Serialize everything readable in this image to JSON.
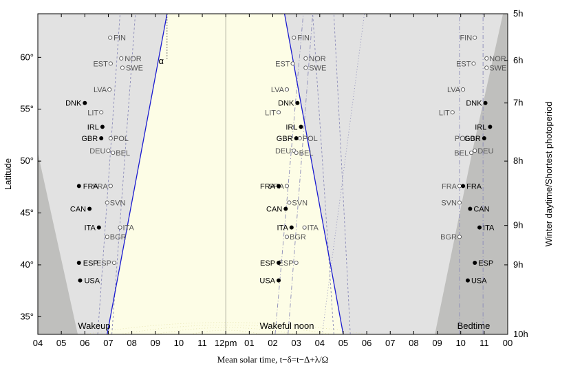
{
  "chart_data": {
    "type": "scatter",
    "xlabel": "Mean solar time, t−δ=t−Δ+λ/Ω",
    "ylabel": "Latitude",
    "y2label": "Winter daytime/Shortest photoperiod",
    "xlim": [
      4,
      24
    ],
    "ylim": [
      33.3,
      64.2
    ],
    "x_ticks": [
      {
        "v": 4,
        "label": "04"
      },
      {
        "v": 5,
        "label": "05"
      },
      {
        "v": 6,
        "label": "06"
      },
      {
        "v": 7,
        "label": "07"
      },
      {
        "v": 8,
        "label": "08"
      },
      {
        "v": 9,
        "label": "09"
      },
      {
        "v": 10,
        "label": "10"
      },
      {
        "v": 11,
        "label": "11"
      },
      {
        "v": 12,
        "label": "12pm"
      },
      {
        "v": 13,
        "label": "01"
      },
      {
        "v": 14,
        "label": "02"
      },
      {
        "v": 15,
        "label": "03"
      },
      {
        "v": 16,
        "label": "04"
      },
      {
        "v": 17,
        "label": "05"
      },
      {
        "v": 18,
        "label": "06"
      },
      {
        "v": 19,
        "label": "07"
      },
      {
        "v": 20,
        "label": "08"
      },
      {
        "v": 21,
        "label": "09"
      },
      {
        "v": 22,
        "label": "10"
      },
      {
        "v": 23,
        "label": "11"
      },
      {
        "v": 24,
        "label": "00"
      }
    ],
    "y_ticks": [
      {
        "v": 35,
        "label": "35°"
      },
      {
        "v": 40,
        "label": "40°"
      },
      {
        "v": 45,
        "label": "45°"
      },
      {
        "v": 50,
        "label": "50°"
      },
      {
        "v": 55,
        "label": "55°"
      },
      {
        "v": 60,
        "label": "60°"
      }
    ],
    "y2_ticks": [
      {
        "lat": 64.2,
        "label": "5h"
      },
      {
        "lat": 59.7,
        "label": "6h"
      },
      {
        "lat": 55.6,
        "label": "7h"
      },
      {
        "lat": 50.0,
        "label": "8h"
      },
      {
        "lat": 43.8,
        "label": "9h"
      },
      {
        "lat": 40.0,
        "label": "9h"
      },
      {
        "lat": 33.3,
        "label": "10h"
      }
    ],
    "section_labels": [
      {
        "text": "Wakeup",
        "x": 6.4
      },
      {
        "text": "Wakeful noon",
        "x": 14.6
      },
      {
        "text": "Bedtime",
        "x": 22.55
      }
    ],
    "alpha_label": "α",
    "colors": {
      "daylight": "#fdfde6",
      "twilight": "#e2e2e2",
      "night": "#bfbfbd",
      "terminator": "#1a1ad0",
      "dashed": "#8a8ab8",
      "open_marker": "#555555",
      "filled_marker": "#000000"
    },
    "sunrise_line": {
      "from": [
        6.95,
        33.3
      ],
      "to": [
        9.5,
        64.2
      ]
    },
    "sunset_line": {
      "from": [
        17.0,
        33.3
      ],
      "to": [
        14.5,
        64.2
      ]
    },
    "night_left": [
      [
        4,
        33.3
      ],
      [
        4,
        50.8
      ],
      [
        5.7,
        33.3
      ]
    ],
    "night_right": [
      [
        24,
        64.2
      ],
      [
        24,
        33.3
      ],
      [
        20.9,
        33.3
      ],
      [
        22.5,
        51.0
      ],
      [
        23.8,
        64.2
      ]
    ],
    "wakeup": {
      "open": [
        {
          "label": "FIN",
          "x": 7.08,
          "lat": 61.9
        },
        {
          "label": "NOR",
          "x": 7.55,
          "lat": 59.9
        },
        {
          "label": "EST",
          "x": 7.1,
          "lat": 59.4
        },
        {
          "label": "SWE",
          "x": 7.6,
          "lat": 59.0
        },
        {
          "label": "LVA",
          "x": 7.05,
          "lat": 56.9
        },
        {
          "label": "LIT",
          "x": 6.7,
          "lat": 54.7
        },
        {
          "label": "POL",
          "x": 7.1,
          "lat": 52.2
        },
        {
          "label": "DEU",
          "x": 7.0,
          "lat": 51.0
        },
        {
          "label": "BEL",
          "x": 7.2,
          "lat": 50.8
        },
        {
          "label": "FRA",
          "x": 7.1,
          "lat": 47.6
        },
        {
          "label": "SVN",
          "x": 6.95,
          "lat": 46.0
        },
        {
          "label": "ITA",
          "x": 7.5,
          "lat": 43.6
        },
        {
          "label": "BGR",
          "x": 6.95,
          "lat": 42.7
        },
        {
          "label": "ESP",
          "x": 7.25,
          "lat": 40.2
        }
      ],
      "filled": [
        {
          "label": "DNK",
          "x": 6.0,
          "lat": 55.6
        },
        {
          "label": "IRL",
          "x": 6.75,
          "lat": 53.3
        },
        {
          "label": "GBR",
          "x": 6.7,
          "lat": 52.2
        },
        {
          "label": "FRA",
          "x": 5.75,
          "lat": 47.6
        },
        {
          "label": "CAN",
          "x": 6.2,
          "lat": 45.4
        },
        {
          "label": "ITA",
          "x": 6.6,
          "lat": 43.6
        },
        {
          "label": "ESP",
          "x": 5.75,
          "lat": 40.2
        },
        {
          "label": "USA",
          "x": 5.8,
          "lat": 38.5
        }
      ]
    },
    "noon": {
      "open": [
        {
          "label": "FIN",
          "x": 14.9,
          "lat": 61.9
        },
        {
          "label": "NOR",
          "x": 15.4,
          "lat": 59.9
        },
        {
          "label": "EST",
          "x": 14.85,
          "lat": 59.4
        },
        {
          "label": "SWE",
          "x": 15.4,
          "lat": 59.0
        },
        {
          "label": "LVA",
          "x": 14.6,
          "lat": 56.9
        },
        {
          "label": "LIT",
          "x": 14.25,
          "lat": 54.7
        },
        {
          "label": "POL",
          "x": 15.15,
          "lat": 52.2
        },
        {
          "label": "DEU",
          "x": 14.9,
          "lat": 51.0
        },
        {
          "label": "BEL",
          "x": 15.0,
          "lat": 50.8
        },
        {
          "label": "FRA",
          "x": 14.6,
          "lat": 47.6
        },
        {
          "label": "SVN",
          "x": 14.7,
          "lat": 46.0
        },
        {
          "label": "ITA",
          "x": 15.35,
          "lat": 43.6
        },
        {
          "label": "BGR",
          "x": 14.6,
          "lat": 42.7
        },
        {
          "label": "ESP",
          "x": 15.0,
          "lat": 40.2
        }
      ],
      "filled": [
        {
          "label": "DNK",
          "x": 15.05,
          "lat": 55.6
        },
        {
          "label": "IRL",
          "x": 15.2,
          "lat": 53.3
        },
        {
          "label": "GBR",
          "x": 15.0,
          "lat": 52.2
        },
        {
          "label": "FRA",
          "x": 14.25,
          "lat": 47.6
        },
        {
          "label": "CAN",
          "x": 14.55,
          "lat": 45.4
        },
        {
          "label": "ITA",
          "x": 14.8,
          "lat": 43.6
        },
        {
          "label": "ESP",
          "x": 14.25,
          "lat": 40.2
        },
        {
          "label": "USA",
          "x": 14.25,
          "lat": 38.5
        }
      ]
    },
    "bedtime": {
      "open": [
        {
          "label": "FIN",
          "x": 22.6,
          "lat": 61.9
        },
        {
          "label": "NOR",
          "x": 23.1,
          "lat": 59.9
        },
        {
          "label": "EST",
          "x": 22.55,
          "lat": 59.4
        },
        {
          "label": "SWE",
          "x": 23.1,
          "lat": 59.0
        },
        {
          "label": "LVA",
          "x": 22.1,
          "lat": 56.9
        },
        {
          "label": "LIT",
          "x": 21.65,
          "lat": 54.7
        },
        {
          "label": "POL",
          "x": 22.5,
          "lat": 52.2
        },
        {
          "label": "DEU",
          "x": 22.6,
          "lat": 51.0
        },
        {
          "label": "BEL",
          "x": 22.45,
          "lat": 50.8
        },
        {
          "label": "FRA",
          "x": 21.95,
          "lat": 47.6
        },
        {
          "label": "SVN",
          "x": 21.95,
          "lat": 46.0
        },
        {
          "label": "BGR",
          "x": 21.95,
          "lat": 42.7
        }
      ],
      "filled": [
        {
          "label": "DNK",
          "x": 23.05,
          "lat": 55.6
        },
        {
          "label": "IRL",
          "x": 23.25,
          "lat": 53.3
        },
        {
          "label": "GBR",
          "x": 23.0,
          "lat": 52.2
        },
        {
          "label": "FRA",
          "x": 22.1,
          "lat": 47.6
        },
        {
          "label": "CAN",
          "x": 22.4,
          "lat": 45.4
        },
        {
          "label": "ITA",
          "x": 22.8,
          "lat": 43.6
        },
        {
          "label": "ESP",
          "x": 22.6,
          "lat": 40.2
        },
        {
          "label": "USA",
          "x": 22.3,
          "lat": 38.5
        }
      ]
    }
  }
}
